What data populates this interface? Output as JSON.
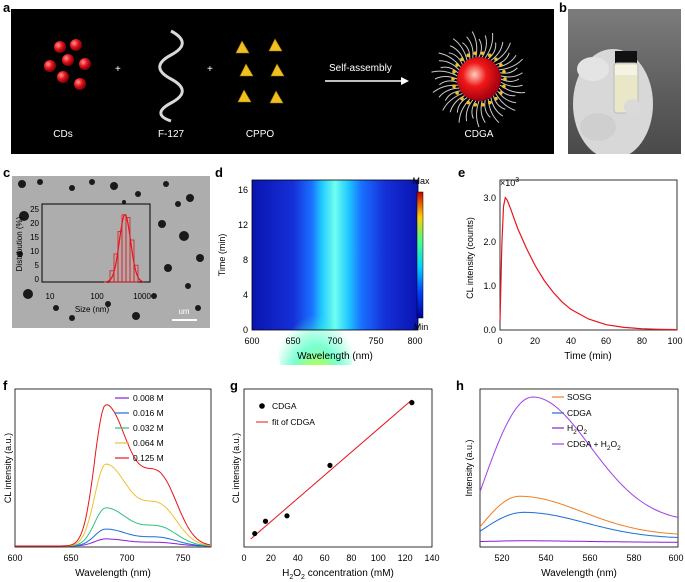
{
  "panels": {
    "a": {
      "letter": "a",
      "labels": [
        "CDs",
        "F-127",
        "CPPO",
        "CDGA"
      ],
      "plus": "+",
      "arrow_label": "Self-assembly"
    },
    "b": {
      "letter": "b"
    },
    "c": {
      "letter": "c",
      "inset_ylabel": "Distribution (%)",
      "inset_xlabel": "Size (nm)",
      "inset_yticks": [
        "0",
        "5",
        "10",
        "15",
        "20",
        "25"
      ],
      "inset_xticks": [
        "10",
        "100",
        "1000"
      ],
      "scalebar": "um"
    },
    "d": {
      "letter": "d",
      "ylabel": "Time (min)",
      "xlabel": "Wavelength (nm)",
      "yticks": [
        "0",
        "4",
        "8",
        "12",
        "16"
      ],
      "xticks": [
        "600",
        "650",
        "700",
        "750",
        "800"
      ],
      "cbar_max": "Max",
      "cbar_min": "Min"
    },
    "e": {
      "letter": "e",
      "ylabel": "CL intensity (counts)",
      "xlabel": "Time (min)",
      "multiplier_base": "×10",
      "multiplier_exp": "3",
      "yticks": [
        "0.0",
        "1.0",
        "2.0",
        "3.0"
      ],
      "xticks": [
        "0",
        "20",
        "40",
        "60",
        "80",
        "100"
      ]
    },
    "f": {
      "letter": "f",
      "ylabel": "CL intensity (a.u.)",
      "xlabel": "Wavelength (nm)",
      "xticks": [
        "600",
        "650",
        "700",
        "750"
      ],
      "legend": [
        "0.008 M",
        "0.016 M",
        "0.032 M",
        "0.064 M",
        "0.125 M"
      ]
    },
    "g": {
      "letter": "g",
      "ylabel": "CL intensity (a.u.)",
      "xlabel_pre": "H",
      "xlabel_sub": "2",
      "xlabel_mid": "O",
      "xlabel_sub2": "2",
      "xlabel_post": " concentration (mM)",
      "xticks": [
        "0",
        "20",
        "40",
        "60",
        "80",
        "100",
        "120",
        "140"
      ],
      "legend_points": "CDGA",
      "legend_fit": "fit of CDGA"
    },
    "h": {
      "letter": "h",
      "ylabel": "Intensity (a.u.)",
      "xlabel": "Wavelength (nm)",
      "xticks": [
        "520",
        "540",
        "560",
        "580",
        "600"
      ],
      "legend_sosg": "SOSG",
      "legend_cdga": "CDGA",
      "legend_h2o2_base": "H",
      "legend_h2o2_sub1": "2",
      "legend_h2o2_mid": "O",
      "legend_h2o2_sub2": "2",
      "legend_mix_pre": "CDGA + H",
      "legend_mix_sub1": "2",
      "legend_mix_mid": "O",
      "legend_mix_sub2": "2"
    }
  },
  "colors": {
    "red": "#e8141c",
    "orange": "#f07e22",
    "blue": "#1a6fd8",
    "purple": "#8a1cd8",
    "violet": "#a040e8",
    "yellow": "#f0c030",
    "green": "#2ec27e"
  },
  "chart_data": [
    {
      "id": "e",
      "type": "line",
      "title": "",
      "xlabel": "Time (min)",
      "ylabel": "CL intensity (counts)",
      "xlim": [
        0,
        100
      ],
      "ylim": [
        0,
        3.4
      ],
      "x": [
        0,
        1,
        2,
        3,
        4,
        6,
        8,
        10,
        15,
        20,
        25,
        30,
        35,
        40,
        50,
        60,
        70,
        80,
        90,
        100
      ],
      "y": [
        0.2,
        1.9,
        2.8,
        3.0,
        2.95,
        2.75,
        2.52,
        2.3,
        1.85,
        1.45,
        1.12,
        0.86,
        0.64,
        0.47,
        0.25,
        0.12,
        0.06,
        0.03,
        0.015,
        0.01
      ]
    },
    {
      "id": "f",
      "type": "line",
      "xlabel": "Wavelength (nm)",
      "ylabel": "CL intensity (a.u.)",
      "xlim": [
        600,
        775
      ],
      "peak_nm": 681,
      "series": [
        {
          "name": "0.008 M",
          "peak": 0.05
        },
        {
          "name": "0.016 M",
          "peak": 0.12
        },
        {
          "name": "0.032 M",
          "peak": 0.27
        },
        {
          "name": "0.064 M",
          "peak": 0.58
        },
        {
          "name": "0.125 M",
          "peak": 1.0
        }
      ]
    },
    {
      "id": "g",
      "type": "scatter",
      "xlabel": "H2O2 concentration (mM)",
      "ylabel": "CL intensity (a.u.)",
      "xlim": [
        0,
        140
      ],
      "ylim": [
        0,
        1.1
      ],
      "x": [
        8,
        16,
        32,
        64,
        125
      ],
      "y": [
        0.04,
        0.13,
        0.17,
        0.54,
        1.0
      ],
      "fit": {
        "x0": 5,
        "y0": 0.0,
        "x1": 125,
        "y1": 1.02
      }
    },
    {
      "id": "h",
      "type": "line",
      "xlabel": "Wavelength (nm)",
      "ylabel": "Intensity (a.u.)",
      "xlim": [
        510,
        600
      ],
      "series": [
        {
          "name": "SOSG",
          "peak_x": 528,
          "peak": 0.32,
          "start": 0.11,
          "end": 0.05
        },
        {
          "name": "CDGA",
          "peak_x": 530,
          "peak": 0.21,
          "start": 0.08,
          "end": 0.03
        },
        {
          "name": "H2O2",
          "peak_x": 530,
          "peak": 0.015,
          "start": 0.01,
          "end": 0.005
        },
        {
          "name": "CDGA + H2O2",
          "peak_x": 534,
          "peak": 1.0,
          "start": 0.35,
          "end": 0.14
        }
      ]
    }
  ]
}
